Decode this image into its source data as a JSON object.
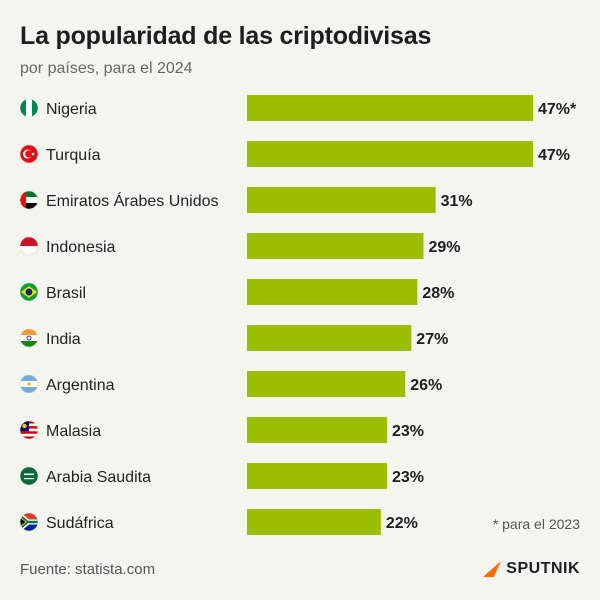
{
  "header": {
    "title": "La popularidad de las criptodivisas",
    "subtitle": "por países, para el 2024"
  },
  "chart_data": {
    "type": "bar",
    "orientation": "horizontal",
    "title": "La popularidad de las criptodivisas",
    "subtitle": "por países, para el 2024",
    "categories": [
      "Nigeria",
      "Turquía",
      "Emiratos Árabes Unidos",
      "Indonesia",
      "Brasil",
      "India",
      "Argentina",
      "Malasia",
      "Arabia Saudita",
      "Sudáfrica"
    ],
    "flag_icons": [
      "nigeria-flag-icon",
      "turkey-flag-icon",
      "uae-flag-icon",
      "indonesia-flag-icon",
      "brazil-flag-icon",
      "india-flag-icon",
      "argentina-flag-icon",
      "malaysia-flag-icon",
      "saudi-arabia-flag-icon",
      "south-africa-flag-icon"
    ],
    "values": [
      47,
      47,
      31,
      29,
      28,
      27,
      26,
      23,
      23,
      22
    ],
    "value_labels": [
      "47%*",
      "47%",
      "31%",
      "29%",
      "28%",
      "27%",
      "26%",
      "23%",
      "23%",
      "22%"
    ],
    "bar_color": "#9cbd00",
    "xlim": [
      0,
      47
    ],
    "grid": false,
    "legend": "none"
  },
  "footnote": "* para el 2023",
  "source": "Fuente: statista.com",
  "brand": {
    "name": "SPUTNIK",
    "icon": "sputnik-arrow-icon",
    "color": "#ff6a00"
  }
}
